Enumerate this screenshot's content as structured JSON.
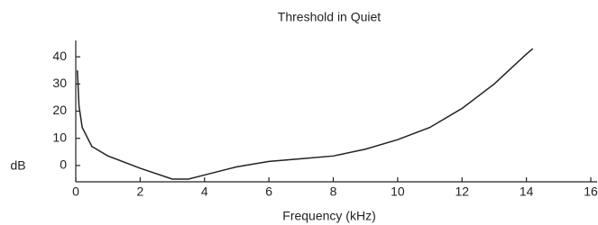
{
  "chart_data": {
    "type": "line",
    "title": "Threshold in Quiet",
    "x_label": "Frequency (kHz)",
    "y_label": "dB",
    "series": [
      {
        "x": [
          0.05,
          0.1,
          0.2,
          0.5,
          1,
          2,
          3,
          3.5,
          4,
          5,
          6,
          7,
          8,
          9,
          10,
          11,
          12,
          13,
          14,
          14.2
        ],
        "values": [
          35,
          22,
          14,
          7,
          3.5,
          -1,
          -5,
          -5,
          -3.5,
          -0.5,
          1.5,
          2.5,
          3.5,
          6,
          9.5,
          14,
          21,
          30,
          41,
          43
        ],
        "color": "#222222"
      }
    ],
    "xlim": [
      0,
      16
    ],
    "xticks": [
      0,
      2,
      4,
      6,
      8,
      10,
      12,
      14,
      16
    ],
    "ylim": [
      -6,
      46
    ],
    "yticks": [
      0,
      10,
      20,
      30,
      40
    ]
  }
}
